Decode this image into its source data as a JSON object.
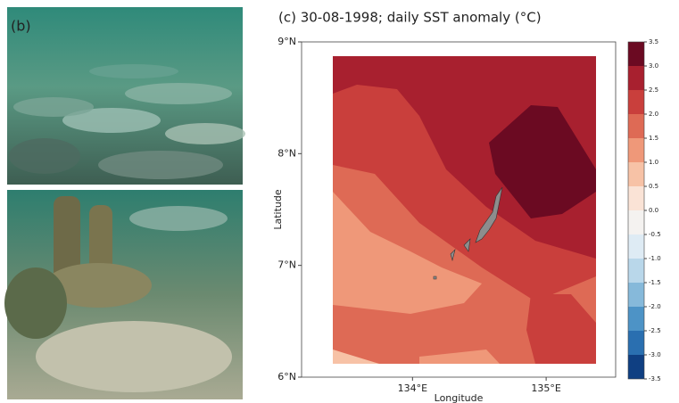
{
  "panel_label": "(b)",
  "chart_data": {
    "type": "contour",
    "title": "(c)  30-08-1998; daily SST anomaly (°C)",
    "xlabel": "Longitude",
    "ylabel": "Latitude",
    "xlim": [
      133.17,
      135.52
    ],
    "ylim": [
      6,
      9
    ],
    "xticks": [
      {
        "value": 134,
        "label": "134°E"
      },
      {
        "value": 135,
        "label": "135°E"
      }
    ],
    "yticks": [
      {
        "value": 6,
        "label": "6°N"
      },
      {
        "value": 7,
        "label": "7°N"
      },
      {
        "value": 8,
        "label": "8°N"
      },
      {
        "value": 9,
        "label": "9°N"
      }
    ],
    "colorbar": {
      "ticks": [
        -3.5,
        {
          "value": -3,
          "label": "-3.0"
        },
        -2.5,
        {
          "value": -2,
          "label": "-2.0"
        },
        -1.5,
        {
          "value": -1,
          "label": "-1.0"
        },
        -0.5,
        {
          "value": 0,
          "label": "0.0"
        },
        0.5,
        {
          "value": 1,
          "label": "1.0"
        },
        1.5,
        {
          "value": 2,
          "label": "2.0"
        },
        2.5,
        {
          "value": 3,
          "label": "3.0"
        },
        3.5
      ],
      "colors": [
        "#0f3f82",
        "#2a6fb0",
        "#4d93c6",
        "#86b9da",
        "#b9d7ea",
        "#deebf4",
        "#f4f2f0",
        "#fae3d6",
        "#f7c2a6",
        "#ef9879",
        "#de6a55",
        "#c93f3c",
        "#a8202f",
        "#6b0a22"
      ]
    }
  }
}
